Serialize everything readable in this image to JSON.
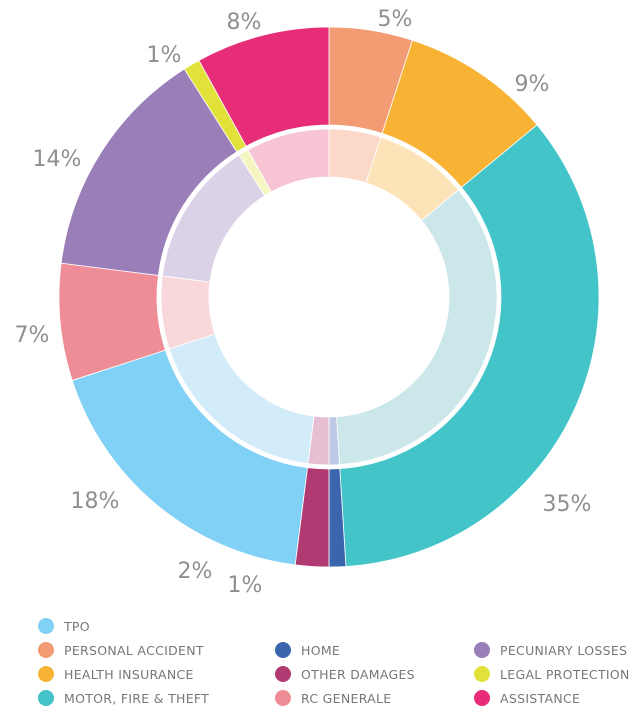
{
  "chart_data": {
    "type": "pie",
    "variant": "double-donut",
    "title": "",
    "series": [
      {
        "category": "PERSONAL ACCIDENT",
        "value": 5,
        "label": "5%",
        "color": "#F39B73",
        "inner_color": "#FBD8C8"
      },
      {
        "category": "HEALTH INSURANCE",
        "value": 9,
        "label": "9%",
        "color": "#F8B335",
        "inner_color": "#FDE3B8"
      },
      {
        "category": "MOTOR, FIRE & THEFT",
        "value": 35,
        "label": "35%",
        "color": "#42C4C9",
        "inner_color": "#CCE7EA"
      },
      {
        "category": "HOME",
        "value": 1,
        "label": "",
        "color": "#3B66AE",
        "inner_color": "#BCC8E6"
      },
      {
        "category": "OTHER DAMAGES",
        "value": 2,
        "label": "2%",
        "color": "#B13A73",
        "inner_color": "#E7BFD2"
      },
      {
        "category": "TPO",
        "value": 18,
        "label": "18%",
        "color": "#80D1F5",
        "inner_color": "#D3ECFA"
      },
      {
        "category": "RC GENERALE",
        "value": 7,
        "label": "7%",
        "color": "#EF8D97",
        "inner_color": "#F9D8DB"
      },
      {
        "category": "PECUNIARY LOSSES",
        "value": 14,
        "label": "14%",
        "color": "#9A7EB7",
        "inner_color": "#DCD2E8"
      },
      {
        "category": "LEGAL PROTECTION",
        "value": 1,
        "label": "1%",
        "color": "#E1E13A",
        "inner_color": "#F5F5C2"
      },
      {
        "category": "ASSISTANCE",
        "value": 8,
        "label": "8%",
        "color": "#E72D77",
        "inner_color": "#F7C4D3"
      }
    ],
    "extra_labels": [
      "1%"
    ],
    "legend_placement": "bottom"
  },
  "legend": {
    "items": [
      {
        "label": "TPO",
        "color": "#80D1F5"
      },
      {
        "label": "PERSONAL ACCIDENT",
        "color": "#F39B73"
      },
      {
        "label": "HEALTH INSURANCE",
        "color": "#F8B335"
      },
      {
        "label": "MOTOR, FIRE & THEFT",
        "color": "#42C4C9"
      },
      {
        "label": "HOME",
        "color": "#3B66AE"
      },
      {
        "label": "OTHER DAMAGES",
        "color": "#B13A73"
      },
      {
        "label": "RC GENERALE",
        "color": "#EF8D97"
      },
      {
        "label": "PECUNIARY LOSSES",
        "color": "#9A7EB7"
      },
      {
        "label": "LEGAL PROTECTION",
        "color": "#E1E13A"
      },
      {
        "label": "ASSISTANCE",
        "color": "#E72D77"
      }
    ]
  }
}
